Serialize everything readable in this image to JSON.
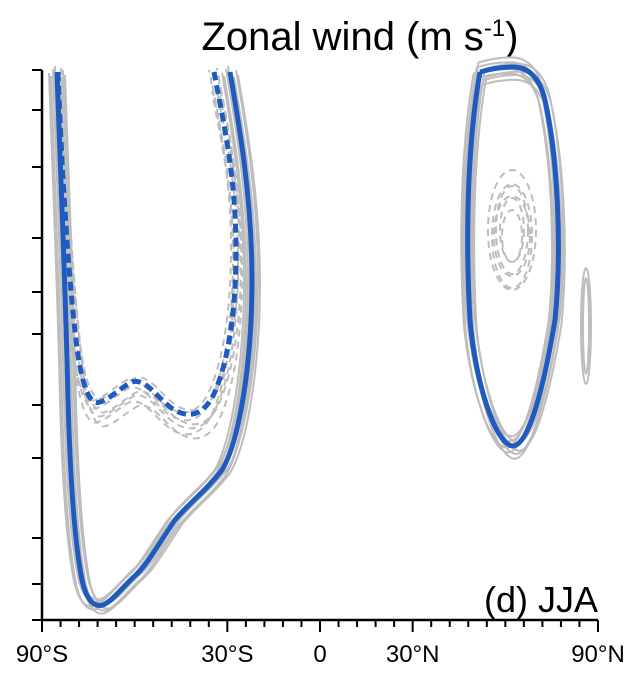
{
  "chart_data": {
    "type": "contour",
    "title_main": "Zonal wind (m s",
    "title_sup": "-1",
    "title_end": ")",
    "panel_label": "(d) JJA",
    "xlabel": "",
    "ylabel": "",
    "x_ticks": [
      {
        "value": -90,
        "label": "90°S"
      },
      {
        "value": -30,
        "label": "30°S"
      },
      {
        "value": 0,
        "label": "0"
      },
      {
        "value": 30,
        "label": "30°N"
      },
      {
        "value": 90,
        "label": "90°N"
      }
    ],
    "x_minor_ticks": [
      -84,
      -78,
      -72,
      -66,
      -60,
      -54,
      -48,
      -42,
      -36,
      -24,
      -18,
      -12,
      -6,
      6,
      12,
      18,
      24,
      36,
      42,
      48,
      54,
      60,
      66,
      72,
      78,
      84
    ],
    "y_tick_count": 11,
    "xlim": [
      -90,
      90
    ],
    "y_tick_labels_shown": false,
    "colors": {
      "ensemble": "#bdbdbd",
      "highlight": "#1f5bbf",
      "axes": "#000000"
    },
    "series": [
      {
        "style": "solid",
        "color": "gray",
        "contour": "westerly"
      },
      {
        "style": "dashed",
        "color": "gray",
        "contour": "westerly"
      },
      {
        "style": "solid",
        "color": "blue",
        "contour": "westerly"
      },
      {
        "style": "dashed",
        "color": "blue",
        "contour": "westerly"
      }
    ]
  }
}
